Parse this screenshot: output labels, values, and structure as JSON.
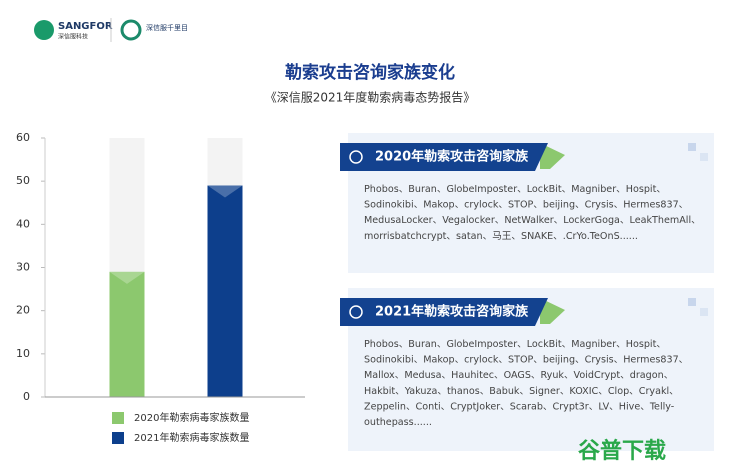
{
  "header": {
    "brand": "SANGFOR",
    "brand_cn": "深信服科技",
    "product": "深信服千里目"
  },
  "title": "勒索攻击咨询家族变化",
  "subtitle": "《深信服2021年度勒索病毒态势报告》",
  "chart_data": {
    "type": "bar",
    "categories": [
      null,
      null
    ],
    "series": [
      {
        "name": "2020年勒索病毒家族数量",
        "color": "#8cc86e",
        "values": [
          29,
          null
        ]
      },
      {
        "name": "2021年勒索病毒家族数量",
        "color": "#0d3f8c",
        "values": [
          null,
          49
        ]
      }
    ],
    "ylim": [
      0,
      60
    ],
    "yticks": [
      0,
      10,
      20,
      30,
      40,
      50,
      60
    ]
  },
  "panels": [
    {
      "title": "2020年勒索攻击咨询家族",
      "lines": [
        "Phobos、Buran、GlobeImposter、LockBit、Magniber、Hospit、",
        "Sodinokibi、Makop、crylock、STOP、beijing、Crysis、Hermes837、",
        "MedusaLocker、Vegalocker、NetWalker、LockerGoga、LeakThemAll、",
        "morrisbatchcrypt、satan、马王、SNAKE、.CrYo.TeOnS......"
      ]
    },
    {
      "title": "2021年勒索攻击咨询家族",
      "lines": [
        "Phobos、Buran、GlobeImposter、LockBit、Magniber、Hospit、",
        "Sodinokibi、Makop、crylock、STOP、beijing、Crysis、Hermes837、",
        "Mallox、Medusa、Hauhitec、OAGS、Ryuk、VoidCrypt、dragon、",
        "Hakbit、Yakuza、thanos、Babuk、Signer、KOXIC、Clop、Cryakl、",
        "Zeppelin、Conti、CryptJoker、Scarab、Crypt3r、LV、Hive、Telly-",
        "outhepass......"
      ]
    }
  ],
  "watermark": "谷普下载"
}
